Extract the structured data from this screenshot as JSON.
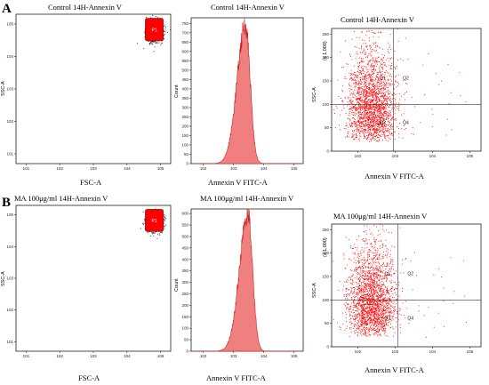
{
  "panels": [
    {
      "letter": "A",
      "dot_title": "Control 14H-Annexin V",
      "hist_title": "Control 14H-Annexin V",
      "quad_title": "Control 14H-Annexin V",
      "dot_xlabel": "FSC-A",
      "dot_ylabel": "SSC-A",
      "gate_label": "P1",
      "hist_xlabel": "Annexin V FITC-A",
      "hist_ylabel": "Count",
      "quad_xlabel": "Annexin V FITC-A",
      "quad_ylabel": "SSC-A",
      "quad_yunit": "(x 1,000)",
      "quadrants": [
        "Q1",
        "Q2",
        "Q3",
        "Q4"
      ]
    },
    {
      "letter": "B",
      "dot_title": "",
      "hist_title": "MA 100μg/ml 14H-Annexin V",
      "quad_title": "MA 100μg/ml 14H-Annexin V",
      "dot_title_left": "MA 100μg/ml 14H-Annexin V",
      "dot_xlabel": "FSC-A",
      "dot_ylabel": "SSC-A",
      "gate_label": "P1",
      "hist_xlabel": "Annexin V FITC-A",
      "hist_ylabel": "Count",
      "quad_xlabel": "Annexin V FITC-A",
      "quad_ylabel": "SSC-A",
      "quad_yunit": "(x 1,000)",
      "quadrants": [
        "Q1",
        "Q2",
        "Q3",
        "Q4"
      ]
    }
  ],
  "colors": {
    "events": "#ff0000",
    "fill": "#f08080",
    "edge": "#cc2222",
    "frame": "#000000",
    "gridline": "#333333"
  },
  "chart_data": [
    {
      "type": "scatter",
      "panel": "A",
      "plot": "dot",
      "xscale": "log",
      "yscale": "log",
      "x_ticks": [
        "10^1",
        "10^2",
        "10^3",
        "10^4",
        "10^5"
      ],
      "y_ticks": [
        "10^1",
        "10^2",
        "10^3",
        "10^4",
        "10^5"
      ],
      "gate": {
        "x": [
          35000.0,
          120000.0
        ],
        "y": [
          30000.0,
          150000.0
        ]
      }
    },
    {
      "type": "area",
      "panel": "A",
      "plot": "histogram",
      "xscale": "log",
      "x_ticks": [
        "10^2",
        "10^3",
        "10^4",
        "10^5"
      ],
      "y_ticks": [
        0,
        50,
        100,
        150,
        200,
        250,
        300,
        350,
        400,
        450,
        500,
        550,
        600,
        650,
        700,
        750
      ],
      "ylim": [
        0,
        780
      ],
      "peak": {
        "x": 2500,
        "y": 740
      }
    },
    {
      "type": "scatter",
      "panel": "A",
      "plot": "quadrant",
      "xscale": "log",
      "x_ticks": [
        "10^2",
        "10^3",
        "10^4",
        "10^5"
      ],
      "y_ticks": [
        0,
        50,
        100,
        150,
        200,
        250
      ],
      "ylim": [
        0,
        262
      ],
      "quadrant_gate": {
        "x": 900,
        "y": 100
      }
    },
    {
      "type": "scatter",
      "panel": "B",
      "plot": "dot",
      "xscale": "log",
      "yscale": "log",
      "x_ticks": [
        "10^1",
        "10^2",
        "10^3",
        "10^4",
        "10^5"
      ],
      "y_ticks": [
        "10^1",
        "10^2",
        "10^3",
        "10^4",
        "10^5"
      ],
      "gate": {
        "x": [
          35000.0,
          120000.0
        ],
        "y": [
          30000.0,
          150000.0
        ]
      }
    },
    {
      "type": "area",
      "panel": "B",
      "plot": "histogram",
      "xscale": "log",
      "x_ticks": [
        "10^2",
        "10^3",
        "10^4",
        "10^5"
      ],
      "y_ticks": [
        0,
        50,
        100,
        150,
        200,
        250,
        300,
        350,
        400,
        450,
        500,
        550,
        600
      ],
      "ylim": [
        0,
        620
      ],
      "peak": {
        "x": 3000,
        "y": 600
      }
    },
    {
      "type": "scatter",
      "panel": "B",
      "plot": "quadrant",
      "xscale": "log",
      "x_ticks": [
        "10^2",
        "10^3",
        "10^4",
        "10^5"
      ],
      "y_ticks": [
        0,
        50,
        100,
        150,
        200,
        250
      ],
      "ylim": [
        0,
        262
      ],
      "quadrant_gate": {
        "x": 1200,
        "y": 100
      }
    }
  ]
}
